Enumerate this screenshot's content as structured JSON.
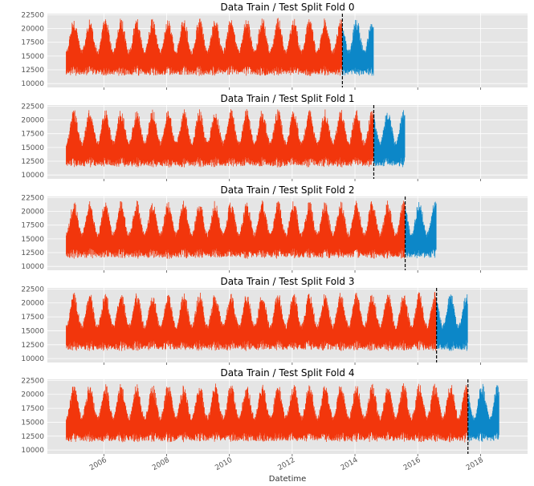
{
  "chart_data": [
    {
      "type": "line",
      "title": "Data Train / Test Split Fold 0",
      "xlabel": "",
      "ylabel": "",
      "xlim": [
        2004.2,
        2019.5
      ],
      "ylim": [
        9300,
        22700
      ],
      "yticks": [
        10000,
        12500,
        15000,
        17500,
        20000,
        22500
      ],
      "xticks": [
        2006,
        2008,
        2010,
        2012,
        2014,
        2016,
        2018
      ],
      "grid": true,
      "series": [
        {
          "role": "train",
          "color": "#f2360c",
          "x_range": [
            2004.8,
            2013.6
          ]
        },
        {
          "role": "test",
          "color": "#0c87c8",
          "x_range": [
            2013.6,
            2014.6
          ]
        }
      ],
      "split": 2013.6
    },
    {
      "type": "line",
      "title": "Data Train / Test Split Fold 1",
      "xlabel": "",
      "ylabel": "",
      "xlim": [
        2004.2,
        2019.5
      ],
      "ylim": [
        9300,
        22700
      ],
      "yticks": [
        10000,
        12500,
        15000,
        17500,
        20000,
        22500
      ],
      "xticks": [
        2006,
        2008,
        2010,
        2012,
        2014,
        2016,
        2018
      ],
      "grid": true,
      "series": [
        {
          "role": "train",
          "color": "#f2360c",
          "x_range": [
            2004.8,
            2014.6
          ]
        },
        {
          "role": "test",
          "color": "#0c87c8",
          "x_range": [
            2014.6,
            2015.6
          ]
        }
      ],
      "split": 2014.6
    },
    {
      "type": "line",
      "title": "Data Train / Test Split Fold 2",
      "xlabel": "",
      "ylabel": "",
      "xlim": [
        2004.2,
        2019.5
      ],
      "ylim": [
        9300,
        22700
      ],
      "yticks": [
        10000,
        12500,
        15000,
        17500,
        20000,
        22500
      ],
      "xticks": [
        2006,
        2008,
        2010,
        2012,
        2014,
        2016,
        2018
      ],
      "grid": true,
      "series": [
        {
          "role": "train",
          "color": "#f2360c",
          "x_range": [
            2004.8,
            2015.6
          ]
        },
        {
          "role": "test",
          "color": "#0c87c8",
          "x_range": [
            2015.6,
            2016.6
          ]
        }
      ],
      "split": 2015.6
    },
    {
      "type": "line",
      "title": "Data Train / Test Split Fold 3",
      "xlabel": "",
      "ylabel": "",
      "xlim": [
        2004.2,
        2019.5
      ],
      "ylim": [
        9300,
        22700
      ],
      "yticks": [
        10000,
        12500,
        15000,
        17500,
        20000,
        22500
      ],
      "xticks": [
        2006,
        2008,
        2010,
        2012,
        2014,
        2016,
        2018
      ],
      "grid": true,
      "series": [
        {
          "role": "train",
          "color": "#f2360c",
          "x_range": [
            2004.8,
            2016.6
          ]
        },
        {
          "role": "test",
          "color": "#0c87c8",
          "x_range": [
            2016.6,
            2017.6
          ]
        }
      ],
      "split": 2016.6
    },
    {
      "type": "line",
      "title": "Data Train / Test Split Fold 4",
      "xlabel": "Datetime",
      "ylabel": "",
      "xlim": [
        2004.2,
        2019.5
      ],
      "ylim": [
        9300,
        22700
      ],
      "yticks": [
        10000,
        12500,
        15000,
        17500,
        20000,
        22500
      ],
      "xticks": [
        2006,
        2008,
        2010,
        2012,
        2014,
        2016,
        2018
      ],
      "grid": true,
      "series": [
        {
          "role": "train",
          "color": "#f2360c",
          "x_range": [
            2004.8,
            2017.6
          ]
        },
        {
          "role": "test",
          "color": "#0c87c8",
          "x_range": [
            2017.6,
            2018.6
          ]
        }
      ],
      "split": 2017.6
    }
  ]
}
